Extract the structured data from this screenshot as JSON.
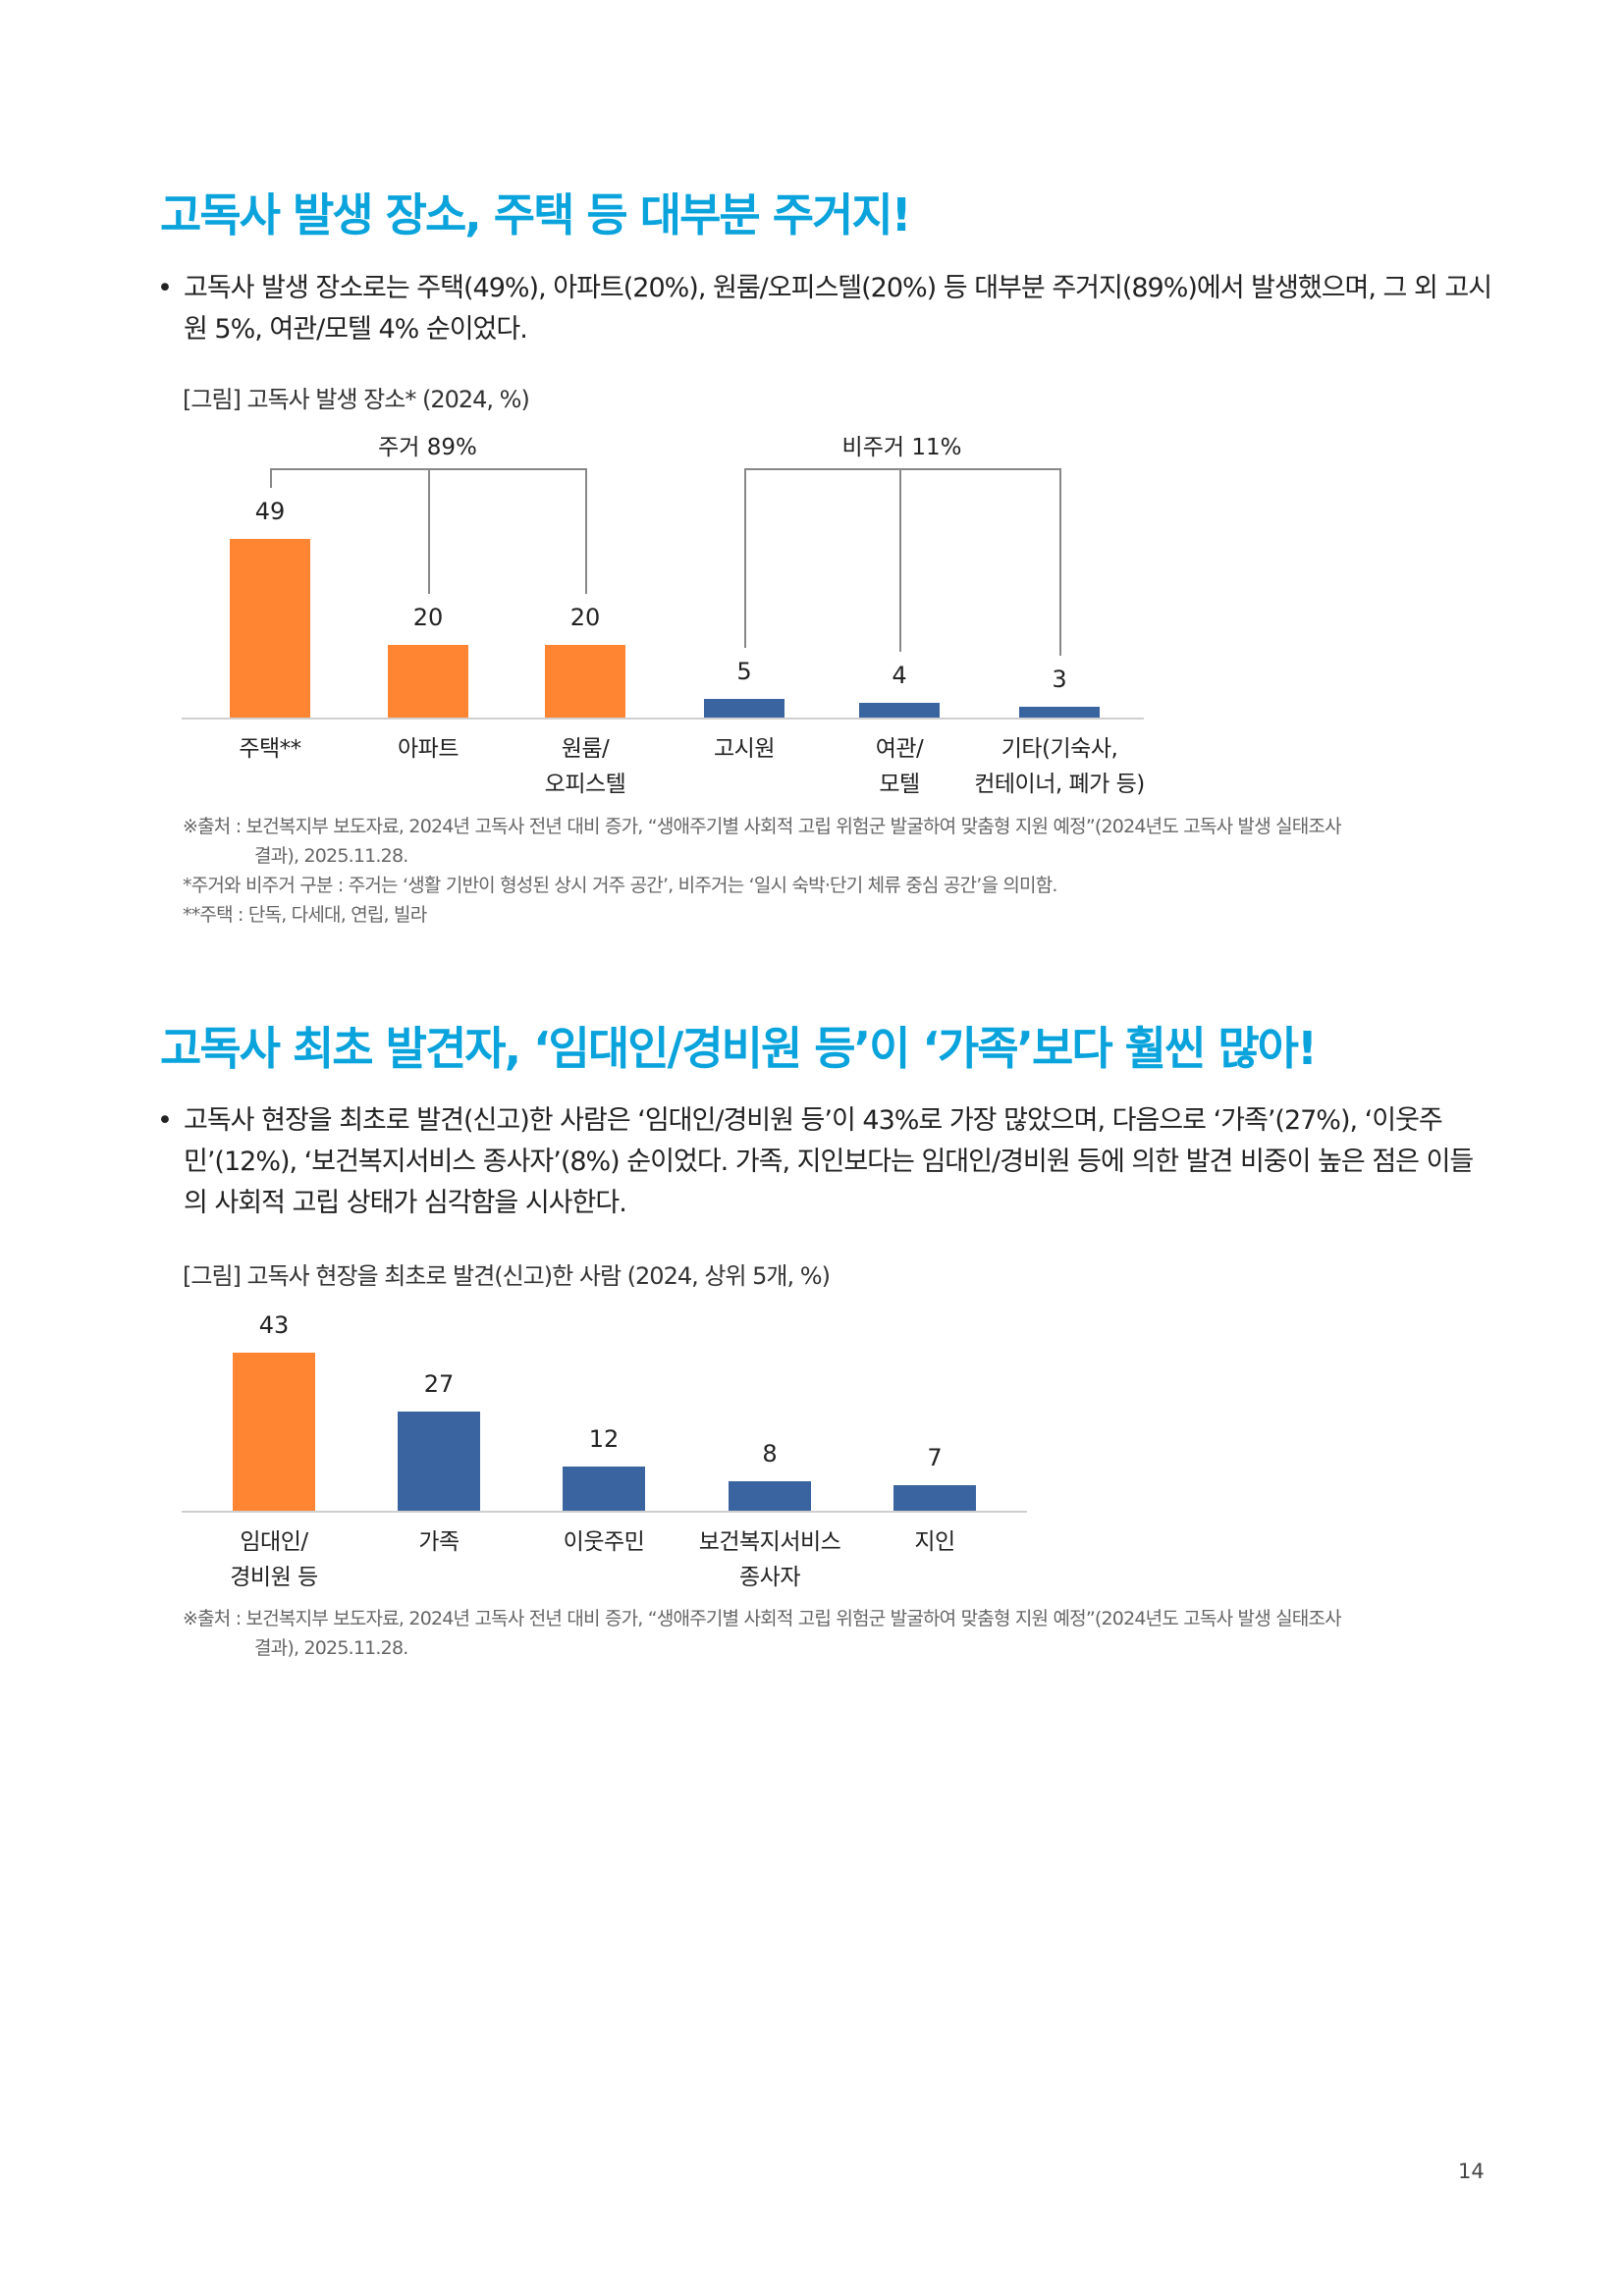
{
  "section1": {
    "title": "고독사 발생 장소, 주택 등 대부분 주거지!",
    "bullet_mark": "•",
    "bullet": "고독사 발생 장소로는 주택(49%), 아파트(20%), 원룸/오피스텔(20%) 등 대부분 주거지(89%)에서 발생했으며, 그 외 고시원 5%, 여관/모텔 4% 순이었다.",
    "caption": "[그림] 고독사 발생 장소* (2024, %)",
    "source_line1": "※출처 : 보건복지부 보도자료, 2024년 고독사 전년 대비 증가, “생애주기별 사회적 고립 위험군 발굴하여 맞춤형 지원 예정”(2024년도 고독사 발생 실태조사",
    "source_line2": "결과), 2025.11.28.",
    "note1": "*주거와 비주거 구분 : 주거는 ‘생활 기반이 형성된 상시 거주 공간’, 비주거는 ‘일시 숙박·단기 체류 중심 공간’을 의미함.",
    "note2": "**주택 : 단독, 다세대, 연립, 빌라"
  },
  "section2": {
    "title": "고독사 최초 발견자, ‘임대인/경비원 등’이 ‘가족’보다 훨씬 많아!",
    "bullet_mark": "•",
    "bullet": "고독사 현장을 최초로 발견(신고)한 사람은 ‘임대인/경비원 등’이 43%로 가장 많았으며, 다음으로 ‘가족’(27%), ‘이웃주민’(12%), ‘보건복지서비스 종사자’(8%) 순이었다. 가족, 지인보다는 임대인/경비원 등에 의한 발견 비중이 높은 점은 이들의 사회적 고립 상태가 심각함을 시사한다.",
    "caption": "[그림] 고독사 현장을 최초로 발견(신고)한 사람 (2024, 상위 5개, %)",
    "source_line1": "※출처 : 보건복지부 보도자료, 2024년 고독사 전년 대비 증가, “생애주기별 사회적 고립 위험군 발굴하여 맞춤형 지원 예정”(2024년도 고독사 발생 실태조사",
    "source_line2": "결과), 2025.11.28."
  },
  "page_number": "14",
  "colors": {
    "title": "#0AA3DC",
    "highlight": "#FF8533",
    "default": "#3A64A0"
  },
  "chart_data": [
    {
      "type": "bar",
      "categories": [
        "주택**",
        "아파트",
        "원룸/\n오피스텔",
        "고시원",
        "여관/\n모텔",
        "기타(기숙사,\n컨테이너, 폐가 등)"
      ],
      "values": [
        49,
        20,
        20,
        5,
        4,
        3
      ],
      "bar_colors": [
        "#FF8533",
        "#FF8533",
        "#FF8533",
        "#3A64A0",
        "#3A64A0",
        "#3A64A0"
      ],
      "groups": [
        {
          "label": "주거 89%",
          "members": [
            0,
            1,
            2
          ]
        },
        {
          "label": "비주거 11%",
          "members": [
            3,
            4,
            5
          ]
        }
      ],
      "ylim": [
        0,
        49
      ],
      "grid": false,
      "data_labels": true
    },
    {
      "type": "bar",
      "categories": [
        "임대인/\n경비원 등",
        "가족",
        "이웃주민",
        "보건복지서비스\n종사자",
        "지인"
      ],
      "values": [
        43,
        27,
        12,
        8,
        7
      ],
      "bar_colors": [
        "#FF8533",
        "#3A64A0",
        "#3A64A0",
        "#3A64A0",
        "#3A64A0"
      ],
      "ylim": [
        0,
        43
      ],
      "grid": false,
      "data_labels": true
    }
  ]
}
